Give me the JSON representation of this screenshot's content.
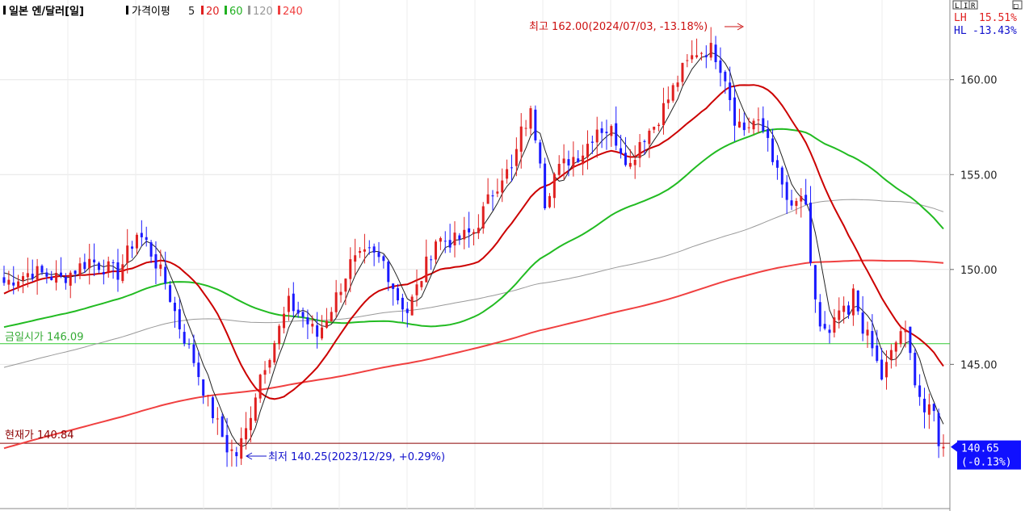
{
  "chart_data": {
    "type": "candlestick",
    "title": "일본 엔/달러[일]",
    "ma_legend": {
      "label": "가격이평",
      "items": [
        {
          "name": "5",
          "color": "#222222"
        },
        {
          "name": "20",
          "color": "#e02020"
        },
        {
          "name": "60",
          "color": "#20b020"
        },
        {
          "name": "120",
          "color": "#999999"
        },
        {
          "name": "240",
          "color": "#f04040"
        }
      ]
    },
    "buttons": [
      "L",
      "I",
      "R",
      "□"
    ],
    "yaxis": {
      "ticks": [
        160.0,
        155.0,
        150.0,
        145.0
      ],
      "tick_labels": [
        "160.00",
        "155.00",
        "150.00",
        "145.00"
      ],
      "ylim": [
        137.4,
        164.2
      ]
    },
    "stats": {
      "lh_label": "LH",
      "lh_value": "15.51%",
      "hl_label": "HL",
      "hl_value": "-13.43%"
    },
    "annotations": {
      "high": {
        "text": "최고 162.00(2024/07/03, -13.18%)",
        "value": 162.0
      },
      "low": {
        "text": "최저 140.25(2023/12/29, +0.29%)",
        "value": 140.25
      },
      "prev_close": {
        "text": "금일시가 146.09",
        "value": 146.09
      },
      "current": {
        "text": "현재가 140.84",
        "value": 140.84
      },
      "last_price": {
        "value": "140.65",
        "change": "(-0.13%)"
      }
    },
    "colors": {
      "up": "#e02020",
      "down": "#1a1aff",
      "ma5": "#222222",
      "ma20": "#cc0000",
      "ma60": "#22bb22",
      "ma120": "#999999",
      "ma240": "#f04040",
      "prev_line": "#33cc33",
      "current_line": "#8b0000",
      "price_box": "#1010ff"
    },
    "price_path": [
      [
        0,
        149.3
      ],
      [
        6,
        149.9
      ],
      [
        12,
        149.5
      ],
      [
        18,
        150.5
      ],
      [
        24,
        149.8
      ],
      [
        28,
        151.9
      ],
      [
        30,
        151.4
      ],
      [
        34,
        149.3
      ],
      [
        37,
        147.0
      ],
      [
        40,
        145.2
      ],
      [
        43,
        143.0
      ],
      [
        45,
        141.8
      ],
      [
        47,
        140.6
      ],
      [
        49,
        140.25
      ],
      [
        51,
        141.5
      ],
      [
        54,
        144.5
      ],
      [
        57,
        146.2
      ],
      [
        60,
        148.2
      ],
      [
        63,
        147.5
      ],
      [
        66,
        146.5
      ],
      [
        69,
        148.0
      ],
      [
        73,
        150.3
      ],
      [
        77,
        150.8
      ],
      [
        80,
        150.4
      ],
      [
        83,
        148.5
      ],
      [
        85,
        147.8
      ],
      [
        88,
        149.6
      ],
      [
        91,
        151.6
      ],
      [
        95,
        151.5
      ],
      [
        99,
        152.0
      ],
      [
        102,
        153.6
      ],
      [
        105,
        155.0
      ],
      [
        107,
        155.2
      ],
      [
        109,
        157.2
      ],
      [
        111,
        158.2
      ],
      [
        113,
        156.0
      ],
      [
        114,
        153.6
      ],
      [
        116,
        155.0
      ],
      [
        119,
        155.8
      ],
      [
        122,
        156.2
      ],
      [
        125,
        157.5
      ],
      [
        128,
        157.3
      ],
      [
        130,
        156.4
      ],
      [
        132,
        155.5
      ],
      [
        134,
        156.8
      ],
      [
        137,
        157.6
      ],
      [
        140,
        159.0
      ],
      [
        143,
        160.5
      ],
      [
        146,
        161.5
      ],
      [
        149,
        161.6
      ],
      [
        150,
        161.3
      ],
      [
        152,
        160.2
      ],
      [
        154,
        158.0
      ],
      [
        156,
        157.4
      ],
      [
        158,
        157.8
      ],
      [
        161,
        157.0
      ],
      [
        163,
        155.0
      ],
      [
        166,
        153.0
      ],
      [
        168,
        153.9
      ],
      [
        169,
        153.0
      ],
      [
        170,
        150.0
      ],
      [
        172,
        147.0
      ],
      [
        174,
        146.4
      ],
      [
        176,
        147.8
      ],
      [
        178,
        147.5
      ],
      [
        179,
        148.7
      ],
      [
        181,
        147.0
      ],
      [
        183,
        145.8
      ],
      [
        185,
        144.3
      ],
      [
        187,
        145.5
      ],
      [
        189,
        146.8
      ],
      [
        190,
        146.5
      ],
      [
        192,
        144.3
      ],
      [
        194,
        142.5
      ],
      [
        196,
        142.4
      ],
      [
        197,
        141.0
      ],
      [
        198,
        140.65
      ]
    ]
  }
}
